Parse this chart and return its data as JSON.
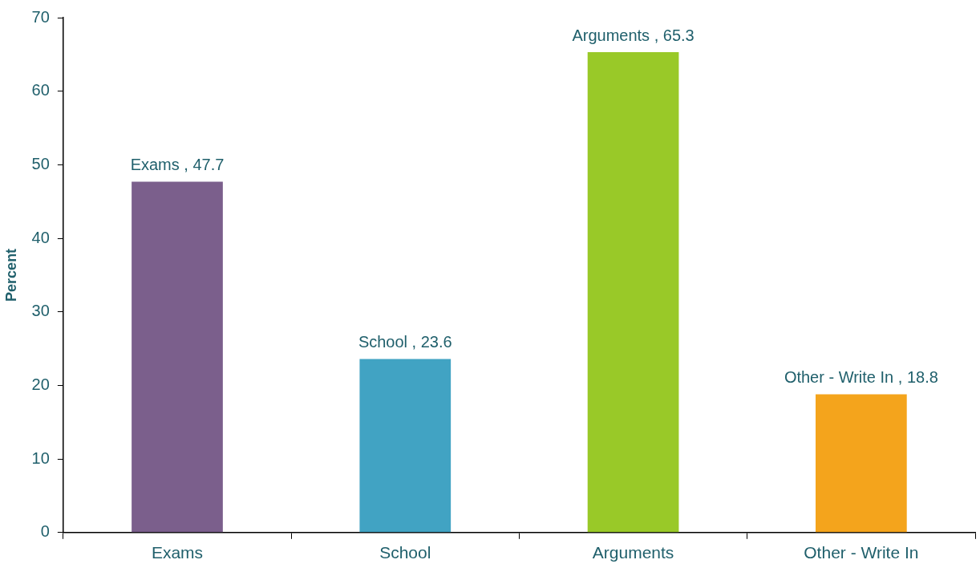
{
  "chart_data": {
    "type": "bar",
    "ylabel": "Percent",
    "categories": [
      "Exams",
      "School",
      "Arguments",
      "Other - Write In"
    ],
    "values": [
      47.7,
      23.6,
      65.3,
      18.8
    ],
    "colors": [
      "#7b5f8c",
      "#41a3c3",
      "#99c928",
      "#f4a41c"
    ],
    "value_labels": [
      "Exams , 47.7",
      "School , 23.6",
      "Arguments , 65.3",
      "Other - Write In , 18.8"
    ],
    "ylim": [
      0,
      70
    ],
    "yticks": [
      0,
      10,
      20,
      30,
      40,
      50,
      60,
      70
    ],
    "grid": false,
    "legend": false
  }
}
